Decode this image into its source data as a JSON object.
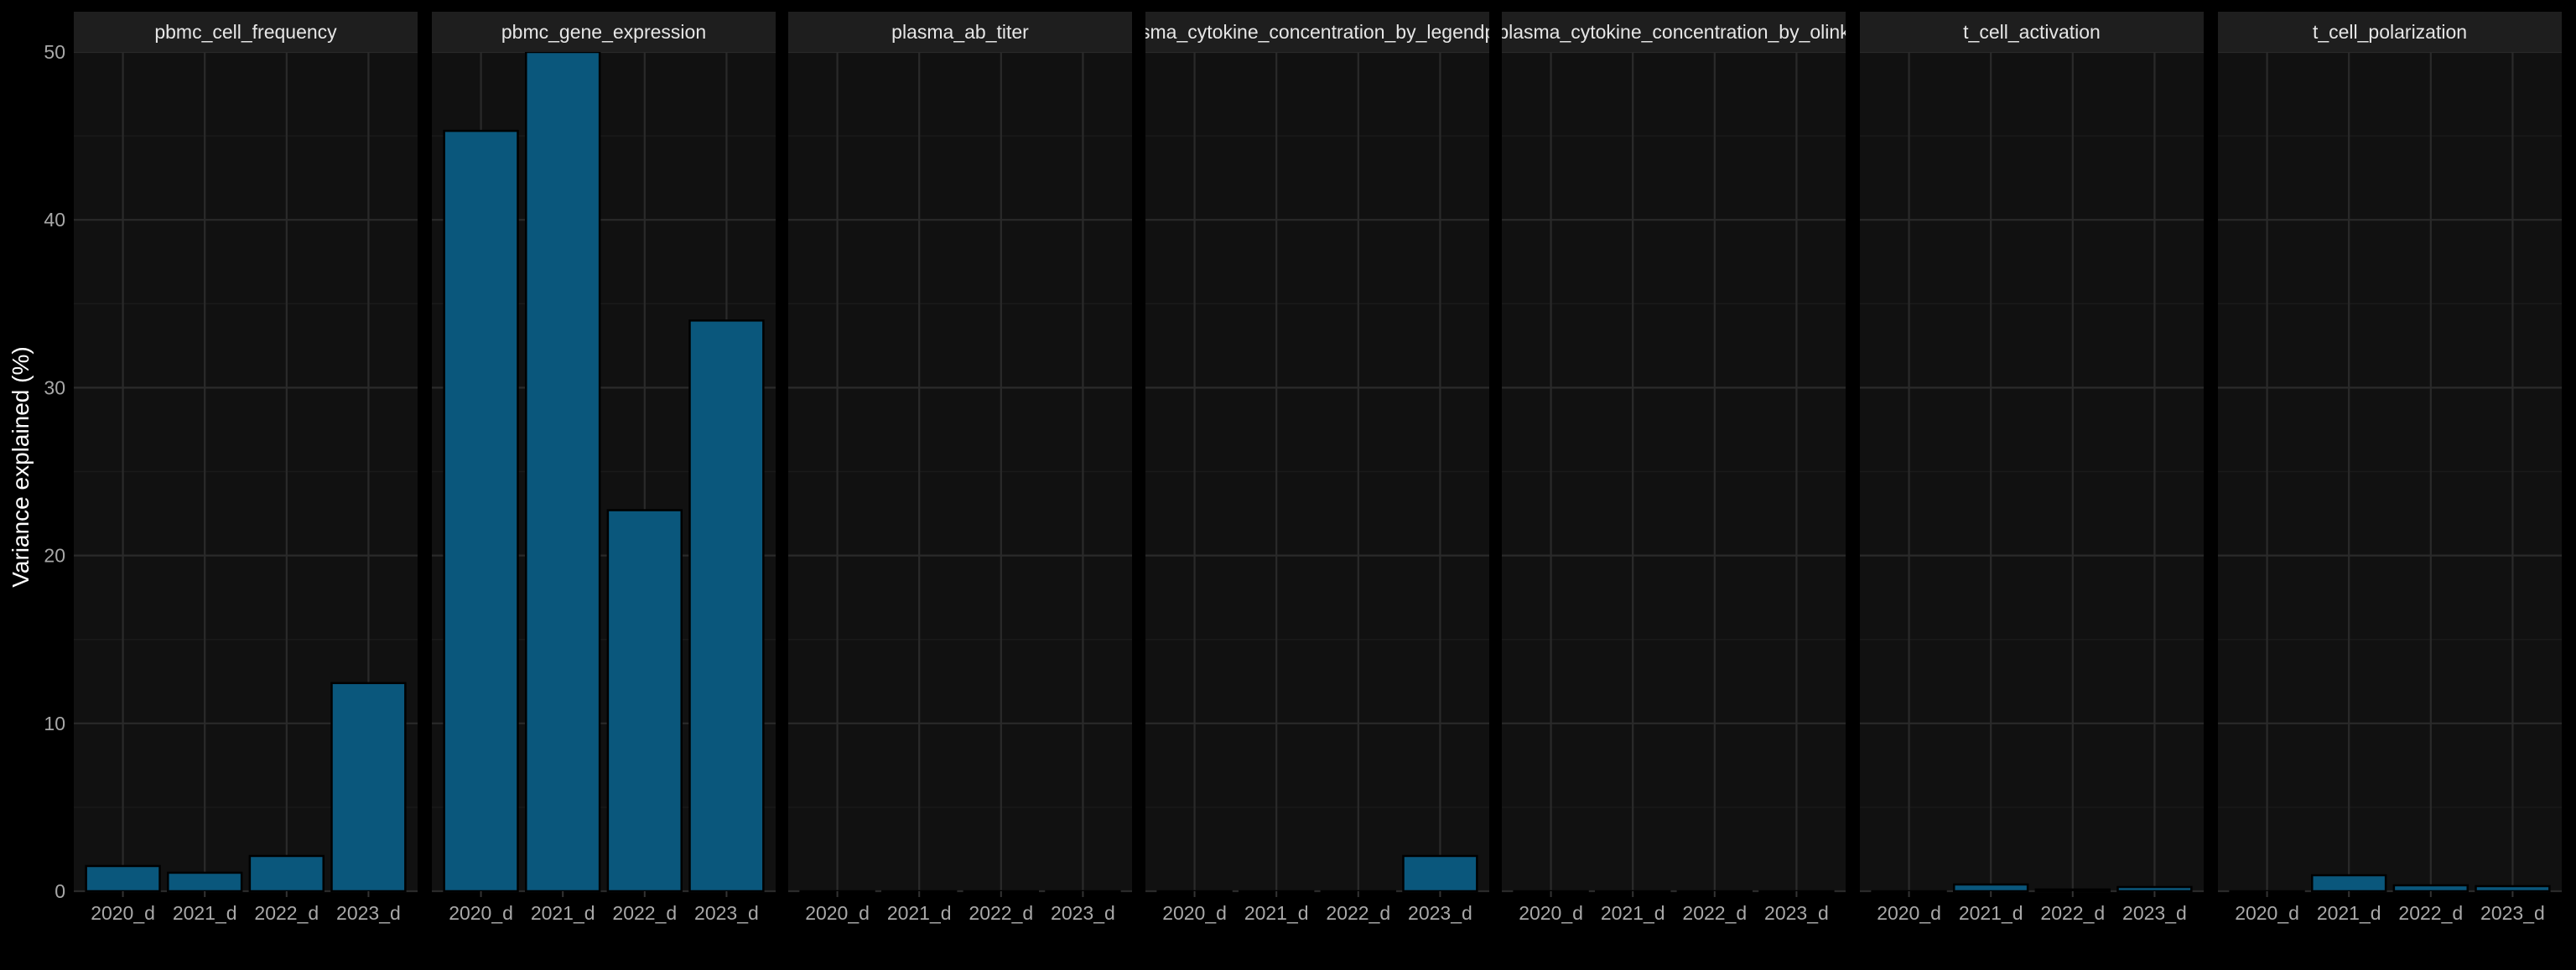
{
  "chart_data": {
    "type": "bar",
    "ylabel": "Variance explained (%)",
    "xlabel": "",
    "ylim": [
      0,
      50
    ],
    "yticks": [
      0,
      10,
      20,
      30,
      40,
      50
    ],
    "categories": [
      "2020_d",
      "2021_d",
      "2022_d",
      "2023_d"
    ],
    "grid": true,
    "legend": "none",
    "colors": {
      "background": "#000000",
      "panel": "#111111",
      "strip": "#1e1e1e",
      "strip_text": "#e6e6e6",
      "grid_major": "#2a2a2a",
      "grid_minor": "#1a1a1a",
      "bar_fill": "#0a577c",
      "bar_stroke": "#000000",
      "axis_text": "#a8a8a8",
      "axis_title": "#ffffff"
    },
    "panels": [
      {
        "name": "pbmc_cell_frequency",
        "values": [
          1.5,
          1.1,
          2.1,
          12.4
        ]
      },
      {
        "name": "pbmc_gene_expression",
        "values": [
          45.3,
          50.0,
          22.7,
          34.0
        ]
      },
      {
        "name": "plasma_ab_titer",
        "values": [
          0,
          0,
          0,
          0
        ]
      },
      {
        "name": "plasma_cytokine_concentration_by_legendplex",
        "values": [
          0,
          0,
          0,
          2.1
        ]
      },
      {
        "name": "plasma_cytokine_concentration_by_olink",
        "values": [
          0,
          0,
          0,
          0
        ]
      },
      {
        "name": "t_cell_activation",
        "values": [
          0,
          0.4,
          0.1,
          0.25
        ]
      },
      {
        "name": "t_cell_polarization",
        "values": [
          0,
          0.95,
          0.35,
          0.3
        ]
      }
    ]
  }
}
